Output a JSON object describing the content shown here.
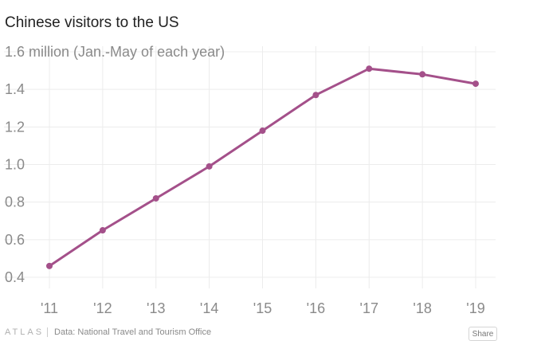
{
  "header": {
    "title": "Chinese visitors to the US"
  },
  "footer": {
    "brand": "ATLAS",
    "source": "Data:  National Travel and Tourism Office",
    "share_label": "Share"
  },
  "colors": {
    "line": "#a4508a",
    "grid": "#ececec"
  },
  "chart_data": {
    "type": "line",
    "title": "Chinese visitors to the US",
    "ylabel": "million (Jan.-May of each year)",
    "categories": [
      "'11",
      "'12",
      "'13",
      "'14",
      "'15",
      "'16",
      "'17",
      "'18",
      "'19"
    ],
    "values": [
      0.46,
      0.65,
      0.82,
      0.99,
      1.18,
      1.37,
      1.51,
      1.48,
      1.43
    ],
    "y_ticks": [
      "0.4",
      "0.6",
      "0.8",
      "1.0",
      "1.2",
      "1.4",
      "1.6 million (Jan.-May of each year)"
    ],
    "y_tick_values": [
      0.4,
      0.6,
      0.8,
      1.0,
      1.2,
      1.4,
      1.6
    ],
    "ylim": [
      0.4,
      1.6
    ],
    "grid": true
  }
}
